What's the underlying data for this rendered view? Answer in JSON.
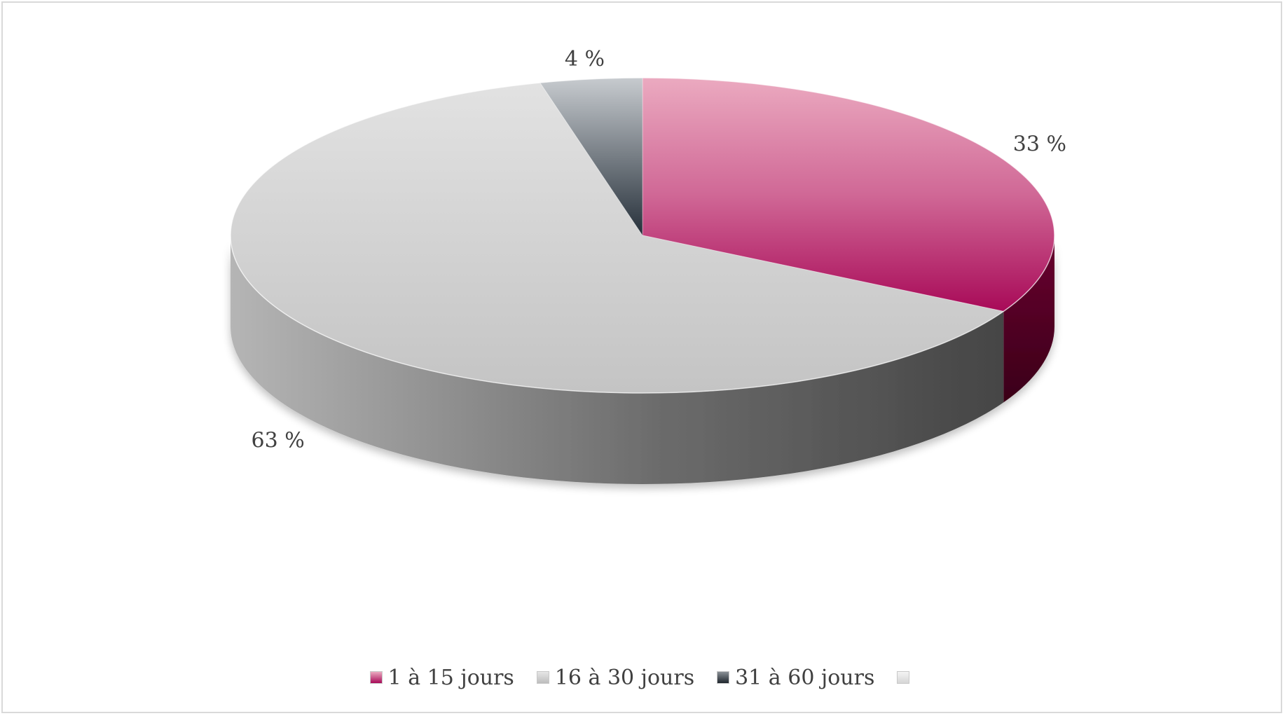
{
  "chart_data": {
    "type": "pie",
    "style": "3d",
    "title": "",
    "slices": [
      {
        "label": "1 à 15 jours",
        "value": 33,
        "data_label": "33 %",
        "color": "#b0185f",
        "color_light": "#e8a3bb"
      },
      {
        "label": "16 à 30 jours",
        "value": 63,
        "data_label": "63 %",
        "color": "#c9c9c9",
        "color_light": "#e2e2e2"
      },
      {
        "label": "31 à 60 jours",
        "value": 4,
        "data_label": "4 %",
        "color": "#2f3840",
        "color_light": "#c8ccd0"
      },
      {
        "label": "",
        "value": 0,
        "data_label": "",
        "color": "#e6e6e6",
        "color_light": "#f2f2f2"
      }
    ],
    "start_angle_deg": 0,
    "direction": "clockwise",
    "legend_position": "bottom"
  }
}
